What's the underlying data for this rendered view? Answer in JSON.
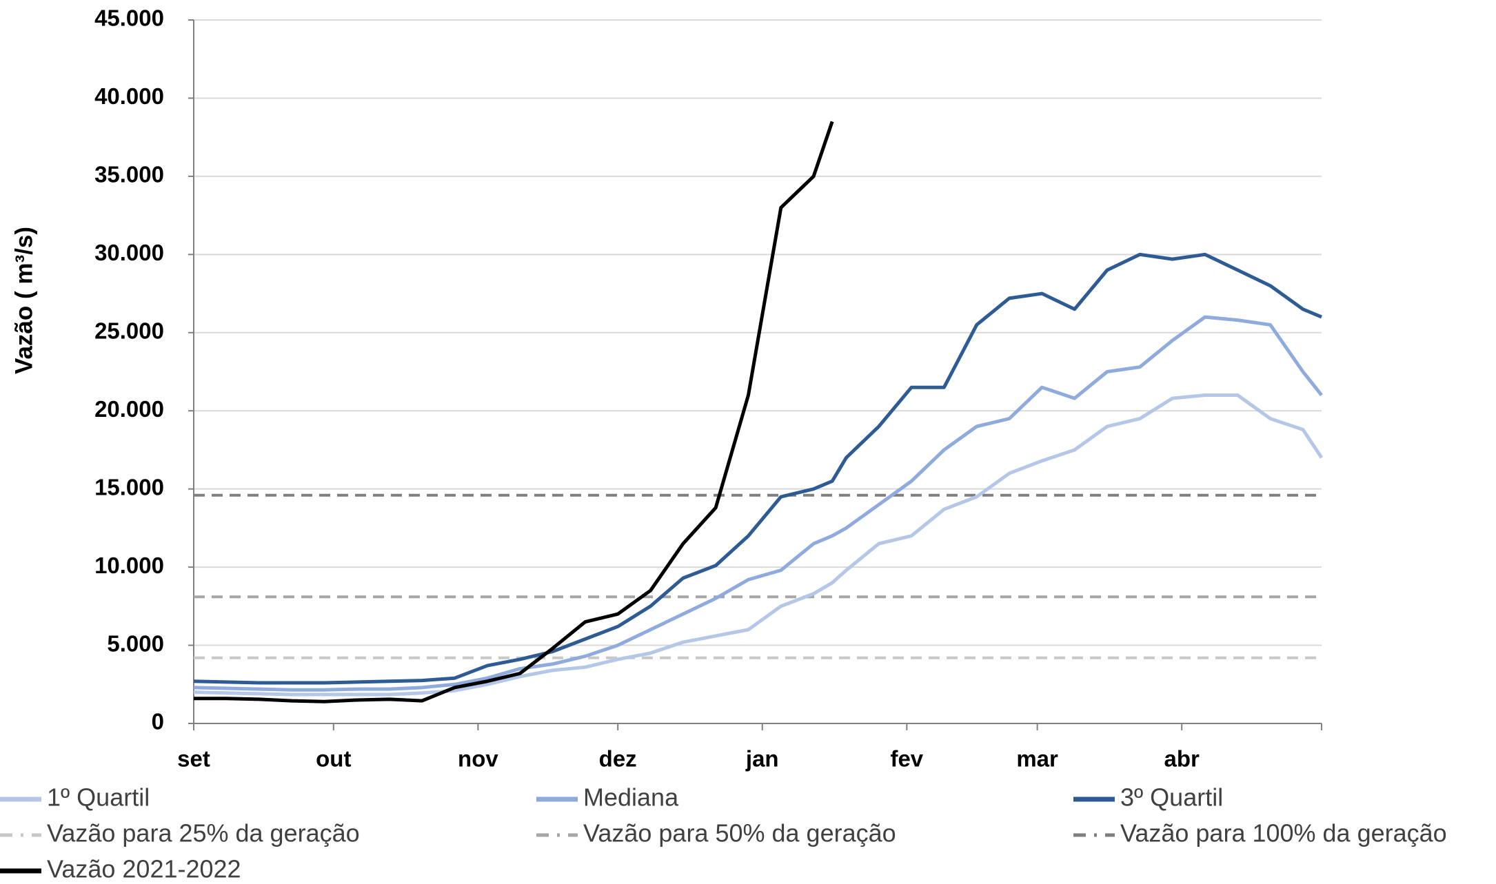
{
  "chart_data": {
    "type": "line",
    "y_label": "Vazão ( m³/s)",
    "x": [
      0,
      7,
      14,
      21,
      28,
      35,
      42,
      49,
      56,
      63,
      70,
      77,
      84,
      91,
      98,
      105,
      112,
      119,
      126,
      133,
      137,
      140,
      147,
      154,
      161,
      168,
      175,
      182,
      189,
      196,
      203,
      210,
      217,
      224,
      231,
      238,
      242
    ],
    "xlim": [
      0,
      242
    ],
    "xticks": [
      {
        "value": 0,
        "label": "set"
      },
      {
        "value": 30,
        "label": "out"
      },
      {
        "value": 61,
        "label": "nov"
      },
      {
        "value": 91,
        "label": "dez"
      },
      {
        "value": 122,
        "label": "jan"
      },
      {
        "value": 153,
        "label": "fev"
      },
      {
        "value": 181,
        "label": "mar"
      },
      {
        "value": 212,
        "label": "abr"
      }
    ],
    "ylim": [
      0,
      45000
    ],
    "yticks": [
      0,
      {
        "value": 5000,
        "label": "5.000"
      },
      {
        "value": 10000,
        "label": "10.000"
      },
      {
        "value": 15000,
        "label": "15.000"
      },
      {
        "value": 20000,
        "label": "20.000"
      },
      {
        "value": 25000,
        "label": "25.000"
      },
      {
        "value": 30000,
        "label": "30.000"
      },
      {
        "value": 35000,
        "label": "35.000"
      },
      {
        "value": 40000,
        "label": "40.000"
      },
      {
        "value": 45000,
        "label": "45.000"
      }
    ],
    "grid": true,
    "series": [
      {
        "name": "1º Quartil",
        "color": "#b4c7e7",
        "values": [
          2000,
          1950,
          1900,
          1850,
          1850,
          1850,
          1850,
          1950,
          2100,
          2500,
          3000,
          3400,
          3600,
          4100,
          4500,
          5200,
          5600,
          6000,
          7500,
          8300,
          9000,
          9800,
          11500,
          12000,
          13700,
          14500,
          16000,
          16800,
          17500,
          19000,
          19500,
          20800,
          21000,
          21000,
          19500,
          18800,
          17000
        ]
      },
      {
        "name": "Mediana",
        "color": "#8faadc",
        "values": [
          2300,
          2250,
          2200,
          2150,
          2150,
          2200,
          2200,
          2300,
          2500,
          2900,
          3500,
          3800,
          4300,
          5000,
          6000,
          7000,
          8000,
          9200,
          9800,
          11500,
          12000,
          12500,
          14000,
          15500,
          17500,
          19000,
          19500,
          21500,
          20800,
          22500,
          22800,
          24500,
          26000,
          25800,
          25500,
          22500,
          21000
        ]
      },
      {
        "name": "3º Quartil",
        "color": "#2f5b95",
        "values": [
          2700,
          2650,
          2600,
          2600,
          2600,
          2650,
          2700,
          2750,
          2900,
          3700,
          4100,
          4600,
          5400,
          6200,
          7500,
          9300,
          10100,
          12000,
          14500,
          15000,
          15500,
          17000,
          19000,
          21500,
          21500,
          25500,
          27200,
          27500,
          26500,
          29000,
          30000,
          29700,
          30000,
          29000,
          28000,
          26500,
          26000
        ]
      },
      {
        "name": "Vazão 2021-2022",
        "color": "#000000",
        "values": [
          1600,
          1600,
          1550,
          1450,
          1400,
          1500,
          1550,
          1450,
          2300,
          2700,
          3200,
          4800,
          6500,
          7000,
          8500,
          11500,
          13800,
          21000,
          33000,
          35000,
          38500,
          null,
          null,
          null,
          null,
          null,
          null,
          null,
          null,
          null,
          null,
          null,
          null,
          null,
          null,
          null,
          null
        ]
      }
    ],
    "hlines": [
      {
        "name": "Vazão para 25% da geração",
        "color": "#c8c8c8",
        "value": 4200
      },
      {
        "name": "Vazão para 50% da geração",
        "color": "#a6a6a6",
        "value": 8100
      },
      {
        "name": "Vazão para 100% da geração",
        "color": "#7f7f7f",
        "value": 14600
      }
    ]
  }
}
